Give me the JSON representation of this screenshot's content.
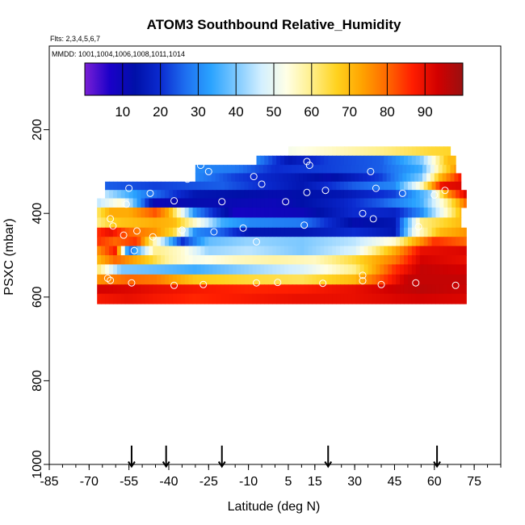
{
  "chart_data": {
    "type": "heatmap",
    "title": "ATOM3 Southbound Relative_Humidity",
    "subtitle_flights": "Flts: 2,3,4,5,6,7",
    "subtitle_dates": "MMDD: 1001,1004,1006,1008,1011,1014",
    "xlabel": "Latitude (deg N)",
    "ylabel": "PSXC (mbar)",
    "xlim": [
      -85,
      85
    ],
    "ylim": [
      1000,
      0
    ],
    "x_ticks": [
      -85,
      -70,
      -55,
      -40,
      -25,
      -10,
      5,
      15,
      30,
      45,
      60,
      75
    ],
    "x_tick_labels": [
      "-85",
      "-70",
      "-55",
      "-40",
      "-25",
      "-10",
      "5",
      "15",
      "30",
      "45",
      "60",
      "75"
    ],
    "y_ticks": [
      200,
      400,
      600,
      800,
      1000
    ],
    "y_tick_labels": [
      "200",
      "400",
      "600",
      "800",
      "1000"
    ],
    "colorbar": {
      "range": [
        0,
        100
      ],
      "ticks": [
        10,
        20,
        30,
        40,
        50,
        60,
        70,
        80,
        90
      ],
      "tick_labels": [
        "10",
        "20",
        "30",
        "40",
        "50",
        "60",
        "70",
        "80",
        "90"
      ],
      "colors": [
        "#7a1fd6",
        "#1a00c8",
        "#0010a8",
        "#0b2bd0",
        "#1e6ff0",
        "#2aa3ff",
        "#7cc8ff",
        "#d2efff",
        "#ffffe6",
        "#ffef8a",
        "#ffd21e",
        "#ffa300",
        "#ff6800",
        "#ff1e00",
        "#d20000",
        "#9a1010"
      ]
    },
    "profile_markers_lat": [
      -54,
      -41,
      -20,
      20,
      61
    ],
    "layers": [
      {
        "p_top": 240,
        "p_bot": 262,
        "values": [
          [
            5,
            52
          ],
          [
            40,
            60
          ],
          [
            58,
            65
          ],
          [
            66,
            66
          ]
        ]
      },
      {
        "p_top": 262,
        "p_bot": 284,
        "values": [
          [
            -7,
            30
          ],
          [
            5,
            15
          ],
          [
            20,
            22
          ],
          [
            40,
            25
          ],
          [
            55,
            40
          ],
          [
            60,
            55
          ],
          [
            65,
            70
          ],
          [
            68,
            70
          ]
        ]
      },
      {
        "p_top": 284,
        "p_bot": 304,
        "values": [
          [
            -30,
            30
          ],
          [
            -15,
            28
          ],
          [
            0,
            20
          ],
          [
            20,
            22
          ],
          [
            40,
            25
          ],
          [
            55,
            35
          ],
          [
            62,
            60
          ],
          [
            68,
            75
          ]
        ]
      },
      {
        "p_top": 304,
        "p_bot": 324,
        "values": [
          [
            -30,
            30
          ],
          [
            -15,
            22
          ],
          [
            0,
            18
          ],
          [
            20,
            12
          ],
          [
            40,
            22
          ],
          [
            55,
            40
          ],
          [
            62,
            70
          ],
          [
            70,
            88
          ]
        ]
      },
      {
        "p_top": 324,
        "p_bot": 344,
        "values": [
          [
            -64,
            25
          ],
          [
            -45,
            22
          ],
          [
            -20,
            25
          ],
          [
            10,
            15
          ],
          [
            30,
            25
          ],
          [
            45,
            30
          ],
          [
            55,
            55
          ],
          [
            63,
            90
          ],
          [
            70,
            92
          ]
        ]
      },
      {
        "p_top": 344,
        "p_bot": 364,
        "values": [
          [
            -64,
            45
          ],
          [
            -50,
            30
          ],
          [
            -30,
            15
          ],
          [
            0,
            12
          ],
          [
            25,
            15
          ],
          [
            45,
            22
          ],
          [
            58,
            40
          ],
          [
            65,
            75
          ],
          [
            72,
            92
          ]
        ]
      },
      {
        "p_top": 364,
        "p_bot": 386,
        "values": [
          [
            -67,
            45
          ],
          [
            -58,
            55
          ],
          [
            -45,
            10
          ],
          [
            -30,
            12
          ],
          [
            0,
            10
          ],
          [
            25,
            18
          ],
          [
            40,
            25
          ],
          [
            55,
            35
          ],
          [
            65,
            60
          ],
          [
            72,
            80
          ]
        ]
      },
      {
        "p_top": 386,
        "p_bot": 410,
        "values": [
          [
            -67,
            62
          ],
          [
            -62,
            72
          ],
          [
            -55,
            72
          ],
          [
            -45,
            82
          ],
          [
            -40,
            72
          ],
          [
            -30,
            30
          ],
          [
            -15,
            8
          ],
          [
            10,
            10
          ],
          [
            30,
            20
          ],
          [
            45,
            18
          ],
          [
            55,
            30
          ],
          [
            70,
            70
          ]
        ]
      },
      {
        "p_top": 410,
        "p_bot": 434,
        "values": [
          [
            -67,
            60
          ],
          [
            -60,
            68
          ],
          [
            -45,
            72
          ],
          [
            -38,
            70
          ],
          [
            -30,
            55
          ],
          [
            -20,
            35
          ],
          [
            -10,
            30
          ],
          [
            10,
            28
          ],
          [
            30,
            12
          ],
          [
            45,
            15
          ],
          [
            55,
            60
          ],
          [
            70,
            70
          ]
        ]
      },
      {
        "p_top": 434,
        "p_bot": 456,
        "values": [
          [
            -67,
            85
          ],
          [
            -62,
            90
          ],
          [
            -55,
            80
          ],
          [
            -45,
            75
          ],
          [
            -38,
            65
          ],
          [
            -30,
            30
          ],
          [
            -20,
            25
          ],
          [
            -10,
            15
          ],
          [
            10,
            15
          ],
          [
            30,
            20
          ],
          [
            45,
            15
          ],
          [
            52,
            50
          ],
          [
            62,
            70
          ],
          [
            72,
            75
          ]
        ]
      },
      {
        "p_top": 456,
        "p_bot": 478,
        "values": [
          [
            -67,
            85
          ],
          [
            -60,
            80
          ],
          [
            -52,
            85
          ],
          [
            -45,
            55
          ],
          [
            -35,
            20
          ],
          [
            -25,
            38
          ],
          [
            -10,
            42
          ],
          [
            10,
            40
          ],
          [
            30,
            45
          ],
          [
            45,
            55
          ],
          [
            52,
            70
          ],
          [
            60,
            85
          ],
          [
            72,
            80
          ]
        ]
      },
      {
        "p_top": 478,
        "p_bot": 500,
        "values": [
          [
            -67,
            75
          ],
          [
            -60,
            88
          ],
          [
            -55,
            25
          ],
          [
            -45,
            60
          ],
          [
            -35,
            55
          ],
          [
            -25,
            42
          ],
          [
            -10,
            45
          ],
          [
            10,
            40
          ],
          [
            30,
            48
          ],
          [
            45,
            72
          ],
          [
            55,
            90
          ],
          [
            72,
            92
          ]
        ]
      },
      {
        "p_top": 500,
        "p_bot": 522,
        "values": [
          [
            -67,
            70
          ],
          [
            -60,
            80
          ],
          [
            -50,
            70
          ],
          [
            -40,
            58
          ],
          [
            -30,
            52
          ],
          [
            -15,
            56
          ],
          [
            0,
            58
          ],
          [
            15,
            56
          ],
          [
            30,
            65
          ],
          [
            45,
            78
          ],
          [
            55,
            93
          ],
          [
            72,
            90
          ]
        ]
      },
      {
        "p_top": 522,
        "p_bot": 546,
        "values": [
          [
            -67,
            62
          ],
          [
            -58,
            40
          ],
          [
            -45,
            38
          ],
          [
            -30,
            35
          ],
          [
            -10,
            42
          ],
          [
            10,
            48
          ],
          [
            30,
            60
          ],
          [
            45,
            85
          ],
          [
            55,
            95
          ],
          [
            72,
            93
          ]
        ]
      },
      {
        "p_top": 546,
        "p_bot": 570,
        "values": [
          [
            -67,
            75
          ],
          [
            -55,
            80
          ],
          [
            -45,
            78
          ],
          [
            -30,
            68
          ],
          [
            -10,
            65
          ],
          [
            10,
            63
          ],
          [
            30,
            70
          ],
          [
            42,
            85
          ],
          [
            50,
            95
          ],
          [
            72,
            95
          ]
        ]
      },
      {
        "p_top": 570,
        "p_bot": 592,
        "values": [
          [
            -67,
            93
          ],
          [
            -55,
            92
          ],
          [
            -45,
            90
          ],
          [
            -30,
            88
          ],
          [
            -10,
            86
          ],
          [
            10,
            87
          ],
          [
            30,
            90
          ],
          [
            45,
            94
          ],
          [
            55,
            96
          ],
          [
            72,
            94
          ]
        ]
      },
      {
        "p_top": 592,
        "p_bot": 616,
        "values": [
          [
            -67,
            88
          ],
          [
            -55,
            90
          ],
          [
            -45,
            88
          ],
          [
            -30,
            86
          ],
          [
            -10,
            88
          ],
          [
            10,
            90
          ],
          [
            30,
            90
          ],
          [
            45,
            92
          ],
          [
            55,
            93
          ],
          [
            72,
            92
          ]
        ]
      }
    ],
    "observations": [
      {
        "lat": 12,
        "p": 276
      },
      {
        "lat": -28,
        "p": 285
      },
      {
        "lat": -25,
        "p": 300
      },
      {
        "lat": -8,
        "p": 312
      },
      {
        "lat": 13,
        "p": 285
      },
      {
        "lat": 36,
        "p": 300
      },
      {
        "lat": -33,
        "p": 318
      },
      {
        "lat": -5,
        "p": 330
      },
      {
        "lat": -55,
        "p": 340
      },
      {
        "lat": -47,
        "p": 352
      },
      {
        "lat": 12,
        "p": 350
      },
      {
        "lat": 19,
        "p": 345
      },
      {
        "lat": 38,
        "p": 340
      },
      {
        "lat": 48,
        "p": 352
      },
      {
        "lat": 60,
        "p": 356
      },
      {
        "lat": 64,
        "p": 345
      },
      {
        "lat": -38,
        "p": 370
      },
      {
        "lat": -20,
        "p": 372
      },
      {
        "lat": 4,
        "p": 372
      },
      {
        "lat": -56,
        "p": 378
      },
      {
        "lat": 33,
        "p": 400
      },
      {
        "lat": -62,
        "p": 413
      },
      {
        "lat": 37,
        "p": 413
      },
      {
        "lat": -61,
        "p": 430
      },
      {
        "lat": -52,
        "p": 442
      },
      {
        "lat": -35,
        "p": 440
      },
      {
        "lat": -23,
        "p": 444
      },
      {
        "lat": -12,
        "p": 435
      },
      {
        "lat": 11,
        "p": 428
      },
      {
        "lat": 54,
        "p": 432
      },
      {
        "lat": -57,
        "p": 452
      },
      {
        "lat": -46,
        "p": 456
      },
      {
        "lat": -7,
        "p": 468
      },
      {
        "lat": -53,
        "p": 489
      },
      {
        "lat": -70,
        "p": 358
      },
      {
        "lat": 1,
        "p": 565
      },
      {
        "lat": 18,
        "p": 567
      },
      {
        "lat": 40,
        "p": 570
      },
      {
        "lat": 53,
        "p": 566
      },
      {
        "lat": -54,
        "p": 566
      },
      {
        "lat": -38,
        "p": 572
      },
      {
        "lat": -27,
        "p": 570
      },
      {
        "lat": -7,
        "p": 566
      },
      {
        "lat": 33,
        "p": 561
      },
      {
        "lat": 33,
        "p": 548
      },
      {
        "lat": -63,
        "p": 555
      },
      {
        "lat": -62,
        "p": 560
      },
      {
        "lat": 68,
        "p": 572
      }
    ]
  }
}
